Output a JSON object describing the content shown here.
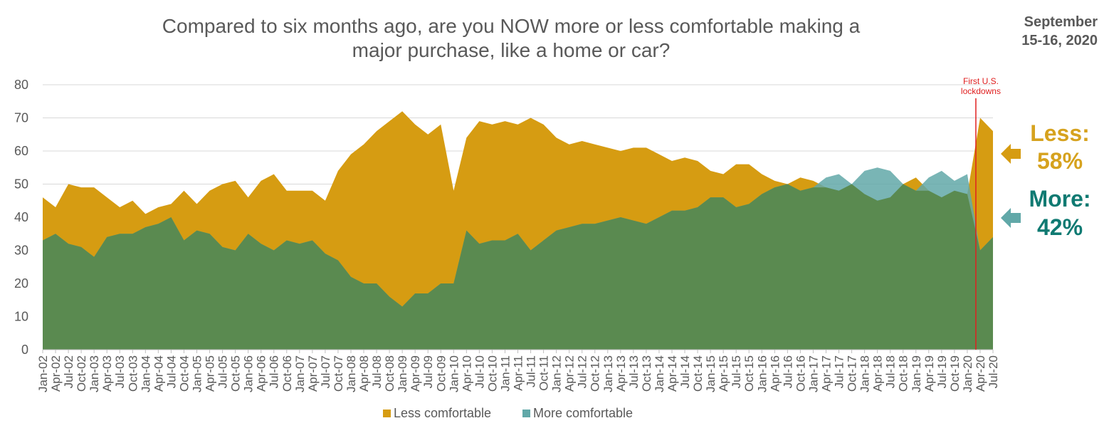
{
  "title_line1": "Compared to six months ago, are you NOW more or less comfortable making a",
  "title_line2": "major purchase, like a home or car?",
  "date_label": "September\n15-16, 2020",
  "annotation": "First U.S.\nlockdowns",
  "callouts": {
    "less_label": "Less:",
    "less_value": "58%",
    "more_label": "More:",
    "more_value": "42%"
  },
  "colors": {
    "less": "#D69C12",
    "more_area": "#5A8A50",
    "more_legend": "#61A8A8",
    "annotation": "#E02020",
    "less_text": "#D6A21E",
    "more_text": "#0F7A72"
  },
  "chart_data": {
    "type": "area",
    "ylim": [
      0,
      80
    ],
    "yticks": [
      0,
      10,
      20,
      30,
      40,
      50,
      60,
      70,
      80
    ],
    "x_tick_labels": [
      "Jan-02",
      "Apr-02",
      "Jul-02",
      "Oct-02",
      "Jan-03",
      "Apr-03",
      "Jul-03",
      "Oct-03",
      "Jan-04",
      "Apr-04",
      "Jul-04",
      "Oct-04",
      "Jan-05",
      "Apr-05",
      "Jul-05",
      "Oct-05",
      "Jan-06",
      "Apr-06",
      "Jul-06",
      "Oct-06",
      "Jan-07",
      "Apr-07",
      "Jul-07",
      "Oct-07",
      "Jan-08",
      "Apr-08",
      "Jul-08",
      "Oct-08",
      "Jan-09",
      "Apr-09",
      "Jul-09",
      "Oct-09",
      "Jan-10",
      "Apr-10",
      "Jul-10",
      "Oct-10",
      "Jan-11",
      "Apr-11",
      "Jul-11",
      "Oct-11",
      "Jan-12",
      "Apr-12",
      "Jul-12",
      "Oct-12",
      "Jan-13",
      "Apr-13",
      "Jul-13",
      "Oct-13",
      "Jan-14",
      "Apr-14",
      "Jul-14",
      "Oct-14",
      "Jan-15",
      "Apr-15",
      "Jul-15",
      "Oct-15",
      "Jan-16",
      "Apr-16",
      "Jul-16",
      "Oct-16",
      "Jan-17",
      "Apr-17",
      "Jul-17",
      "Oct-17",
      "Jan-18",
      "Apr-18",
      "Jul-18",
      "Oct-18",
      "Jan-19",
      "Apr-19",
      "Jul-19",
      "Oct-19",
      "Jan-20",
      "Apr-20",
      "Jul-20"
    ],
    "legend": [
      "Less comfortable",
      "More comfortable"
    ],
    "legend_position": "bottom",
    "annotation_date": "Mar-20",
    "series": [
      {
        "name": "Less comfortable",
        "points": [
          [
            "Jan-02",
            46
          ],
          [
            "Apr-02",
            43
          ],
          [
            "Jul-02",
            50
          ],
          [
            "Oct-02",
            49
          ],
          [
            "Jan-03",
            49
          ],
          [
            "Apr-03",
            46
          ],
          [
            "Jul-03",
            43
          ],
          [
            "Oct-03",
            45
          ],
          [
            "Jan-04",
            41
          ],
          [
            "Apr-04",
            43
          ],
          [
            "Jul-04",
            44
          ],
          [
            "Oct-04",
            48
          ],
          [
            "Jan-05",
            44
          ],
          [
            "Apr-05",
            48
          ],
          [
            "Jul-05",
            50
          ],
          [
            "Oct-05",
            51
          ],
          [
            "Jan-06",
            46
          ],
          [
            "Apr-06",
            51
          ],
          [
            "Jul-06",
            53
          ],
          [
            "Oct-06",
            48
          ],
          [
            "Jan-07",
            48
          ],
          [
            "Apr-07",
            48
          ],
          [
            "Jul-07",
            45
          ],
          [
            "Oct-07",
            54
          ],
          [
            "Jan-08",
            59
          ],
          [
            "Apr-08",
            62
          ],
          [
            "Jul-08",
            66
          ],
          [
            "Oct-08",
            69
          ],
          [
            "Jan-09",
            72
          ],
          [
            "Apr-09",
            68
          ],
          [
            "Jul-09",
            65
          ],
          [
            "Oct-09",
            68
          ],
          [
            "Jan-10",
            48
          ],
          [
            "Apr-10",
            64
          ],
          [
            "Jul-10",
            69
          ],
          [
            "Oct-10",
            68
          ],
          [
            "Jan-11",
            69
          ],
          [
            "Apr-11",
            68
          ],
          [
            "Jul-11",
            70
          ],
          [
            "Oct-11",
            68
          ],
          [
            "Jan-12",
            64
          ],
          [
            "Apr-12",
            62
          ],
          [
            "Jul-12",
            63
          ],
          [
            "Oct-12",
            62
          ],
          [
            "Jan-13",
            61
          ],
          [
            "Apr-13",
            60
          ],
          [
            "Jul-13",
            61
          ],
          [
            "Oct-13",
            61
          ],
          [
            "Jan-14",
            59
          ],
          [
            "Apr-14",
            57
          ],
          [
            "Jul-14",
            58
          ],
          [
            "Oct-14",
            57
          ],
          [
            "Jan-15",
            54
          ],
          [
            "Apr-15",
            53
          ],
          [
            "Jul-15",
            56
          ],
          [
            "Oct-15",
            56
          ],
          [
            "Jan-16",
            53
          ],
          [
            "Apr-16",
            51
          ],
          [
            "Jul-16",
            50
          ],
          [
            "Oct-16",
            52
          ],
          [
            "Jan-17",
            51
          ],
          [
            "Apr-17",
            49
          ],
          [
            "Jul-17",
            48
          ],
          [
            "Oct-17",
            50
          ],
          [
            "Jan-18",
            47
          ],
          [
            "Apr-18",
            45
          ],
          [
            "Jul-18",
            46
          ],
          [
            "Oct-18",
            50
          ],
          [
            "Jan-19",
            52
          ],
          [
            "Apr-19",
            48
          ],
          [
            "Jul-19",
            46
          ],
          [
            "Oct-19",
            48
          ],
          [
            "Jan-20",
            47
          ],
          [
            "Apr-20",
            70
          ],
          [
            "Jul-20",
            66
          ]
        ]
      },
      {
        "name": "More comfortable",
        "points": [
          [
            "Jan-02",
            33
          ],
          [
            "Apr-02",
            35
          ],
          [
            "Jul-02",
            32
          ],
          [
            "Oct-02",
            31
          ],
          [
            "Jan-03",
            28
          ],
          [
            "Apr-03",
            34
          ],
          [
            "Jul-03",
            35
          ],
          [
            "Oct-03",
            35
          ],
          [
            "Jan-04",
            37
          ],
          [
            "Apr-04",
            38
          ],
          [
            "Jul-04",
            40
          ],
          [
            "Oct-04",
            33
          ],
          [
            "Jan-05",
            36
          ],
          [
            "Apr-05",
            35
          ],
          [
            "Jul-05",
            31
          ],
          [
            "Oct-05",
            30
          ],
          [
            "Jan-06",
            35
          ],
          [
            "Apr-06",
            32
          ],
          [
            "Jul-06",
            30
          ],
          [
            "Oct-06",
            33
          ],
          [
            "Jan-07",
            32
          ],
          [
            "Apr-07",
            33
          ],
          [
            "Jul-07",
            29
          ],
          [
            "Oct-07",
            27
          ],
          [
            "Jan-08",
            22
          ],
          [
            "Apr-08",
            20
          ],
          [
            "Jul-08",
            20
          ],
          [
            "Oct-08",
            16
          ],
          [
            "Jan-09",
            13
          ],
          [
            "Apr-09",
            17
          ],
          [
            "Jul-09",
            17
          ],
          [
            "Oct-09",
            20
          ],
          [
            "Jan-10",
            20
          ],
          [
            "Apr-10",
            36
          ],
          [
            "Jul-10",
            32
          ],
          [
            "Oct-10",
            33
          ],
          [
            "Jan-11",
            33
          ],
          [
            "Apr-11",
            35
          ],
          [
            "Jul-11",
            30
          ],
          [
            "Oct-11",
            33
          ],
          [
            "Jan-12",
            36
          ],
          [
            "Apr-12",
            37
          ],
          [
            "Jul-12",
            38
          ],
          [
            "Oct-12",
            38
          ],
          [
            "Jan-13",
            39
          ],
          [
            "Apr-13",
            40
          ],
          [
            "Jul-13",
            39
          ],
          [
            "Oct-13",
            38
          ],
          [
            "Jan-14",
            40
          ],
          [
            "Apr-14",
            42
          ],
          [
            "Jul-14",
            42
          ],
          [
            "Oct-14",
            43
          ],
          [
            "Jan-15",
            46
          ],
          [
            "Apr-15",
            46
          ],
          [
            "Jul-15",
            43
          ],
          [
            "Oct-15",
            44
          ],
          [
            "Jan-16",
            47
          ],
          [
            "Apr-16",
            49
          ],
          [
            "Jul-16",
            50
          ],
          [
            "Oct-16",
            48
          ],
          [
            "Jan-17",
            49
          ],
          [
            "Apr-17",
            52
          ],
          [
            "Jul-17",
            53
          ],
          [
            "Oct-17",
            50
          ],
          [
            "Jan-18",
            54
          ],
          [
            "Apr-18",
            55
          ],
          [
            "Jul-18",
            54
          ],
          [
            "Oct-18",
            50
          ],
          [
            "Jan-19",
            48
          ],
          [
            "Apr-19",
            52
          ],
          [
            "Jul-19",
            54
          ],
          [
            "Oct-19",
            51
          ],
          [
            "Jan-20",
            53
          ],
          [
            "Apr-20",
            30
          ],
          [
            "Jul-20",
            34
          ]
        ]
      }
    ]
  }
}
